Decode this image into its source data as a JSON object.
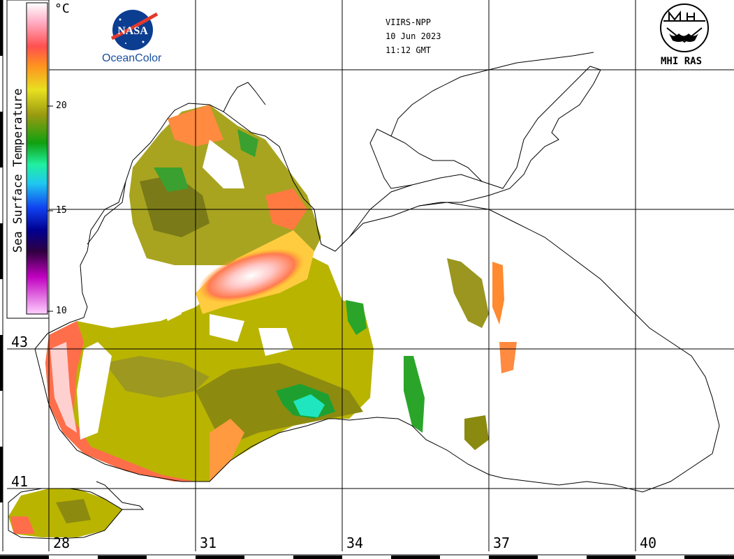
{
  "sensor": "VIIRS-NPP",
  "date": "10 Jun 2023",
  "time": "11:12 GMT",
  "brand_left": {
    "text": "OceanColor",
    "logo": "NASA"
  },
  "brand_right": {
    "text": "MHI RAS"
  },
  "colorbar": {
    "title": "Sea Surface Temperature",
    "unit": "°C",
    "ticks": [
      "20",
      "15",
      "10"
    ]
  },
  "latitude_labels": [
    "43",
    "41"
  ],
  "longitude_labels": [
    "28",
    "31",
    "34",
    "37",
    "40"
  ],
  "colors": {
    "warm": "#ff6a3a",
    "hot": "#ffd6d6",
    "mid": "#c8c000",
    "olive": "#8a8a10",
    "green": "#2aa52a",
    "cyan": "#22e6c8"
  }
}
